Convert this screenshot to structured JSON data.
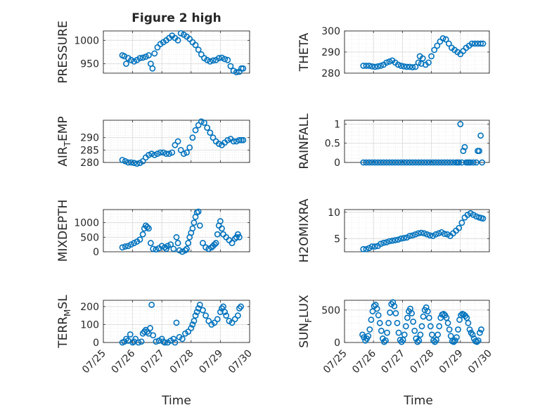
{
  "figure": {
    "title": "Figure 2 high",
    "x_ticks": [
      "07/25",
      "07/26",
      "07/27",
      "07/28",
      "07/29",
      "07/30"
    ],
    "xlabel": "Time"
  },
  "colors": {
    "marker": "#0072BD",
    "axis": "#262626",
    "grid_major": "#dcdcdc",
    "grid_minor": "#e6e6e6"
  },
  "chart_data": [
    {
      "type": "scatter",
      "ylabel": "PRESSURE",
      "ylabel_sub": "",
      "xlim": [
        0,
        5
      ],
      "ylim": [
        930,
        1020
      ],
      "yticks": [
        950,
        1000
      ],
      "grid": "on, minor grid",
      "x": [
        0.65,
        0.72,
        0.78,
        0.85,
        0.95,
        1.05,
        1.15,
        1.25,
        1.35,
        1.45,
        1.55,
        1.62,
        1.68,
        1.75,
        1.85,
        1.95,
        2.05,
        2.15,
        2.25,
        2.35,
        2.45,
        2.55,
        2.65,
        2.75,
        2.85,
        2.95,
        3.05,
        3.15,
        3.25,
        3.35,
        3.45,
        3.55,
        3.65,
        3.75,
        3.85,
        3.95,
        4.05,
        4.15,
        4.25,
        4.35,
        4.45,
        4.55,
        4.65,
        4.72,
        4.78
      ],
      "y": [
        968,
        966,
        950,
        962,
        958,
        955,
        958,
        962,
        963,
        965,
        968,
        950,
        940,
        972,
        985,
        992,
        996,
        1000,
        1005,
        1010,
        1005,
        1000,
        1015,
        1012,
        1008,
        1003,
        996,
        990,
        980,
        970,
        962,
        958,
        955,
        957,
        958,
        962,
        963,
        960,
        958,
        945,
        935,
        932,
        933,
        940,
        940
      ]
    },
    {
      "type": "scatter",
      "ylabel": "THETA",
      "ylabel_sub": "",
      "xlim": [
        0,
        5
      ],
      "ylim": [
        280,
        300
      ],
      "yticks": [
        280,
        290,
        300
      ],
      "grid": "on, minor grid",
      "x": [
        0.65,
        0.75,
        0.85,
        0.95,
        1.05,
        1.15,
        1.25,
        1.35,
        1.45,
        1.55,
        1.65,
        1.75,
        1.85,
        1.95,
        2.05,
        2.15,
        2.25,
        2.35,
        2.45,
        2.55,
        2.6,
        2.65,
        2.7,
        2.8,
        2.9,
        3.0,
        3.1,
        3.2,
        3.3,
        3.4,
        3.5,
        3.6,
        3.7,
        3.8,
        3.9,
        4.0,
        4.1,
        4.2,
        4.3,
        4.4,
        4.5,
        4.6,
        4.7,
        4.78
      ],
      "y": [
        283.5,
        283.5,
        283.5,
        283.2,
        283,
        283.2,
        283.5,
        284,
        285,
        285.5,
        286,
        285,
        284,
        283.5,
        283.2,
        283,
        283,
        282.8,
        283,
        285,
        288,
        284.5,
        287,
        284,
        285,
        288,
        291,
        293,
        295,
        296.5,
        296,
        294,
        292,
        291,
        290,
        289,
        290.5,
        292,
        293,
        294,
        294,
        294,
        294,
        294
      ]
    },
    {
      "type": "scatter",
      "ylabel": "AIR",
      "ylabel_sub": "T",
      "ylabel_suffix": "EMP",
      "xlim": [
        0,
        5
      ],
      "ylim": [
        280,
        297
      ],
      "yticks": [
        280,
        285,
        290
      ],
      "grid": "on, minor grid",
      "x": [
        0.65,
        0.75,
        0.85,
        0.95,
        1.05,
        1.15,
        1.25,
        1.35,
        1.45,
        1.55,
        1.65,
        1.75,
        1.85,
        1.95,
        2.05,
        2.15,
        2.25,
        2.35,
        2.45,
        2.55,
        2.65,
        2.75,
        2.85,
        2.95,
        3.05,
        3.15,
        3.25,
        3.35,
        3.45,
        3.55,
        3.65,
        3.75,
        3.85,
        3.95,
        4.05,
        4.15,
        4.25,
        4.35,
        4.45,
        4.55,
        4.65,
        4.72,
        4.78
      ],
      "y": [
        281,
        280.5,
        280,
        280,
        279.8,
        279.5,
        279.8,
        280.5,
        282,
        283,
        283.5,
        283,
        283.5,
        284,
        284,
        283.5,
        283.5,
        284,
        287,
        288.5,
        285,
        283.5,
        284,
        286,
        290,
        293,
        295,
        296.5,
        296,
        294,
        292,
        290,
        288.5,
        287.5,
        287,
        288,
        289,
        289.5,
        288.5,
        288.5,
        289,
        289,
        289
      ]
    },
    {
      "type": "scatter",
      "ylabel": "RAINFALL",
      "ylabel_sub": "",
      "xlim": [
        0,
        5
      ],
      "ylim": [
        0,
        1.1
      ],
      "yticks": [
        0,
        0.5,
        1
      ],
      "grid": "on, minor grid",
      "x": [
        0.65,
        0.75,
        0.85,
        0.95,
        1.05,
        1.15,
        1.25,
        1.35,
        1.45,
        1.55,
        1.65,
        1.75,
        1.85,
        1.95,
        2.05,
        2.15,
        2.25,
        2.35,
        2.45,
        2.55,
        2.65,
        2.75,
        2.85,
        2.95,
        3.05,
        3.15,
        3.25,
        3.35,
        3.45,
        3.55,
        3.65,
        3.75,
        3.85,
        3.9,
        3.95,
        4.0,
        4.05,
        4.1,
        4.15,
        4.2,
        4.25,
        4.3,
        4.35,
        4.45,
        4.55,
        4.6,
        4.65,
        4.7,
        4.75
      ],
      "y": [
        0,
        0,
        0,
        0,
        0,
        0,
        0,
        0,
        0,
        0,
        0,
        0,
        0,
        0,
        0,
        0,
        0,
        0,
        0,
        0,
        0,
        0,
        0,
        0,
        0,
        0,
        0,
        0,
        0,
        0,
        0,
        0,
        0,
        0,
        0,
        1.0,
        0,
        0.3,
        0.4,
        0,
        0,
        0,
        0,
        0,
        0,
        0.3,
        0.3,
        0.7,
        0
      ]
    },
    {
      "type": "scatter",
      "ylabel": "MIXDEPTH",
      "ylabel_sub": "",
      "xlim": [
        0,
        5
      ],
      "ylim": [
        0,
        1450
      ],
      "yticks": [
        0,
        500,
        1000
      ],
      "grid": "on, minor grid",
      "x": [
        0.65,
        0.75,
        0.85,
        0.95,
        1.05,
        1.15,
        1.25,
        1.35,
        1.4,
        1.45,
        1.5,
        1.55,
        1.62,
        1.7,
        1.8,
        1.9,
        2.0,
        2.1,
        2.15,
        2.2,
        2.3,
        2.4,
        2.5,
        2.55,
        2.6,
        2.7,
        2.8,
        2.85,
        2.9,
        2.95,
        3.0,
        3.05,
        3.1,
        3.15,
        3.2,
        3.25,
        3.3,
        3.4,
        3.5,
        3.6,
        3.7,
        3.75,
        3.8,
        3.85,
        3.9,
        3.95,
        4.0,
        4.05,
        4.1,
        4.2,
        4.3,
        4.4,
        4.5,
        4.55,
        4.6,
        4.65
      ],
      "y": [
        150,
        180,
        200,
        250,
        300,
        350,
        420,
        600,
        800,
        900,
        850,
        800,
        300,
        100,
        80,
        120,
        200,
        150,
        100,
        200,
        250,
        100,
        500,
        300,
        50,
        0,
        50,
        100,
        300,
        500,
        650,
        800,
        1000,
        1200,
        1350,
        1380,
        900,
        300,
        150,
        100,
        150,
        200,
        250,
        300,
        600,
        900,
        1050,
        800,
        600,
        500,
        400,
        300,
        450,
        500,
        600,
        500
      ]
    },
    {
      "type": "scatter",
      "ylabel": "H2OMIXRA",
      "ylabel_sub": "",
      "xlim": [
        0,
        5
      ],
      "ylim": [
        2.5,
        10.5
      ],
      "yticks": [
        5,
        10
      ],
      "grid": "on, minor grid",
      "x": [
        0.65,
        0.75,
        0.85,
        0.95,
        1.05,
        1.15,
        1.25,
        1.35,
        1.45,
        1.55,
        1.65,
        1.75,
        1.85,
        1.95,
        2.05,
        2.15,
        2.25,
        2.35,
        2.45,
        2.55,
        2.65,
        2.75,
        2.85,
        2.95,
        3.05,
        3.15,
        3.25,
        3.35,
        3.45,
        3.55,
        3.65,
        3.75,
        3.85,
        3.95,
        4.05,
        4.15,
        4.25,
        4.35,
        4.45,
        4.55,
        4.65,
        4.72,
        4.78
      ],
      "y": [
        3,
        3,
        3.2,
        3.5,
        3.5,
        3.6,
        4,
        4.2,
        4.3,
        4.5,
        4.6,
        4.7,
        4.8,
        5,
        5.1,
        5.2,
        5.5,
        5.6,
        5.8,
        6,
        6.1,
        6,
        5.8,
        5.6,
        5.5,
        5.8,
        6,
        6.2,
        5.9,
        5.8,
        5.5,
        6,
        6.5,
        7,
        8,
        9,
        9.5,
        9.8,
        9.5,
        9.2,
        9,
        8.9,
        8.8
      ]
    },
    {
      "type": "scatter",
      "ylabel": "TERR",
      "ylabel_sub": "M",
      "ylabel_suffix": "SL",
      "xlim": [
        0,
        5
      ],
      "ylim": [
        0,
        235
      ],
      "yticks": [
        0,
        100,
        200
      ],
      "grid": "on, minor grid",
      "x": [
        0.65,
        0.72,
        0.78,
        0.85,
        0.92,
        1.0,
        1.05,
        1.1,
        1.2,
        1.3,
        1.35,
        1.4,
        1.45,
        1.5,
        1.55,
        1.6,
        1.65,
        1.7,
        1.8,
        1.9,
        2.0,
        2.05,
        2.1,
        2.2,
        2.3,
        2.4,
        2.45,
        2.5,
        2.6,
        2.7,
        2.8,
        2.9,
        3.0,
        3.05,
        3.1,
        3.15,
        3.2,
        3.25,
        3.3,
        3.4,
        3.5,
        3.6,
        3.7,
        3.8,
        3.9,
        4.0,
        4.05,
        4.1,
        4.15,
        4.2,
        4.3,
        4.4,
        4.5,
        4.6,
        4.65,
        4.7
      ],
      "y": [
        0,
        5,
        20,
        10,
        45,
        0,
        5,
        20,
        0,
        5,
        50,
        60,
        70,
        60,
        50,
        80,
        210,
        40,
        5,
        10,
        20,
        5,
        0,
        0,
        10,
        20,
        0,
        110,
        30,
        20,
        50,
        60,
        80,
        100,
        120,
        150,
        170,
        190,
        210,
        180,
        150,
        120,
        100,
        110,
        130,
        170,
        190,
        200,
        170,
        150,
        120,
        110,
        130,
        150,
        190,
        200
      ]
    },
    {
      "type": "scatter",
      "ylabel": "SUN",
      "ylabel_sub": "F",
      "ylabel_suffix": "LUX",
      "xlim": [
        0,
        5
      ],
      "ylim": [
        0,
        650
      ],
      "yticks": [
        0,
        500
      ],
      "grid": "on, minor grid",
      "x": [
        0.62,
        0.67,
        0.72,
        0.77,
        0.82,
        0.87,
        0.92,
        0.97,
        1.02,
        1.07,
        1.12,
        1.17,
        1.22,
        1.27,
        1.32,
        1.37,
        1.42,
        1.47,
        1.52,
        1.57,
        1.62,
        1.67,
        1.72,
        1.77,
        1.82,
        1.87,
        1.92,
        1.97,
        2.02,
        2.07,
        2.12,
        2.17,
        2.22,
        2.27,
        2.32,
        2.37,
        2.42,
        2.47,
        2.52,
        2.57,
        2.62,
        2.67,
        2.72,
        2.77,
        2.82,
        2.87,
        2.92,
        2.97,
        3.02,
        3.07,
        3.12,
        3.17,
        3.22,
        3.27,
        3.32,
        3.37,
        3.42,
        3.47,
        3.52,
        3.57,
        3.62,
        3.67,
        3.72,
        3.77,
        3.82,
        3.87,
        3.92,
        3.97,
        4.02,
        4.07,
        4.12,
        4.17,
        4.22,
        4.27,
        4.32,
        4.37,
        4.42,
        4.47,
        4.52,
        4.57,
        4.62,
        4.67,
        4.72
      ],
      "y": [
        120,
        80,
        30,
        60,
        100,
        200,
        350,
        480,
        560,
        580,
        520,
        420,
        300,
        180,
        60,
        10,
        30,
        150,
        300,
        460,
        590,
        620,
        560,
        450,
        300,
        150,
        40,
        10,
        40,
        120,
        250,
        380,
        480,
        520,
        450,
        320,
        180,
        60,
        10,
        30,
        120,
        250,
        400,
        500,
        540,
        480,
        380,
        250,
        120,
        30,
        10,
        40,
        120,
        250,
        380,
        430,
        440,
        420,
        380,
        300,
        200,
        100,
        20,
        10,
        30,
        80,
        200,
        350,
        420,
        440,
        430,
        410,
        380,
        300,
        200,
        150,
        120,
        60,
        20,
        10,
        30,
        150,
        200
      ]
    }
  ]
}
